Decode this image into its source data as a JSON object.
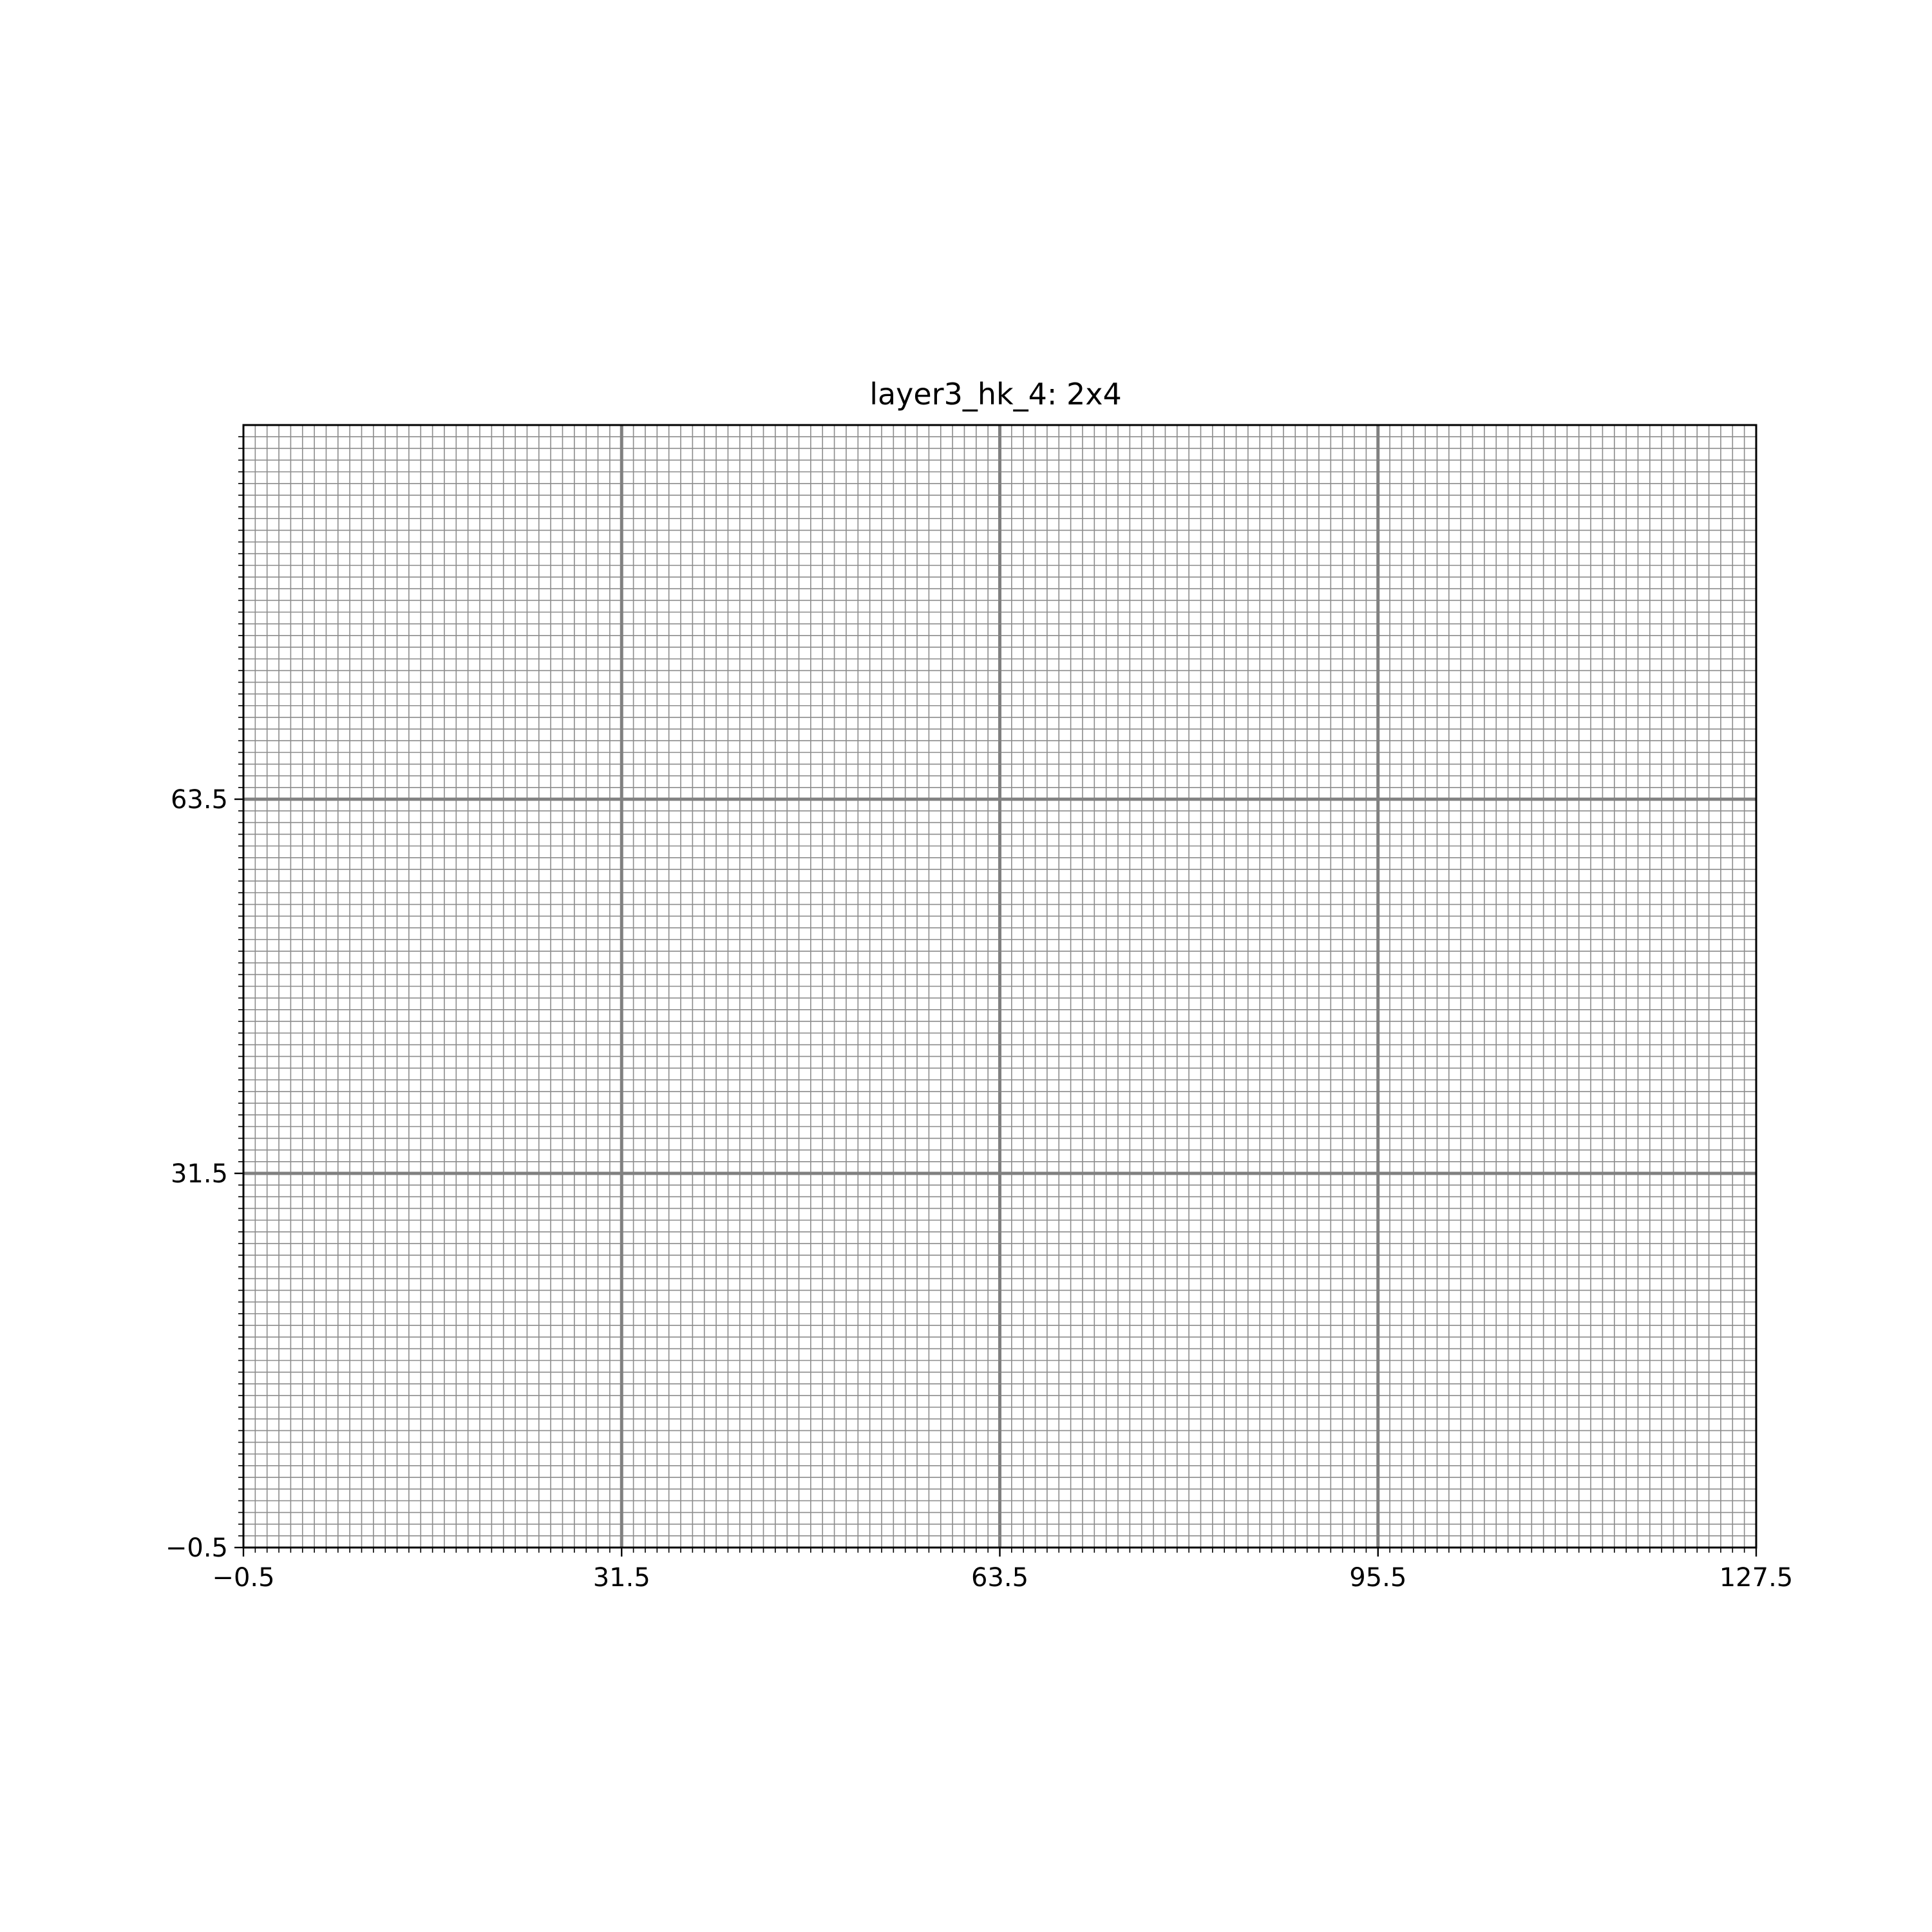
{
  "chart_data": {
    "type": "heatmap",
    "title": "layer3_hk_4: 2x4",
    "xlabel": "",
    "ylabel": "",
    "xlim": [
      -0.5,
      127.5
    ],
    "ylim": [
      -0.5,
      95.5
    ],
    "x_ticks": [
      -0.5,
      31.5,
      63.5,
      95.5,
      127.5
    ],
    "x_tick_labels": [
      "−0.5",
      "31.5",
      "63.5",
      "95.5",
      "127.5"
    ],
    "y_ticks": [
      -0.5,
      31.5,
      63.5
    ],
    "y_tick_labels": [
      "−0.5",
      "31.5",
      "63.5"
    ],
    "minor_step": 1,
    "major_step": 32,
    "grid": true,
    "values": [],
    "colors": {
      "minor_grid": "#8c8c8c",
      "major_grid": "#808080",
      "axes": "#000000",
      "background": "#ffffff"
    }
  }
}
